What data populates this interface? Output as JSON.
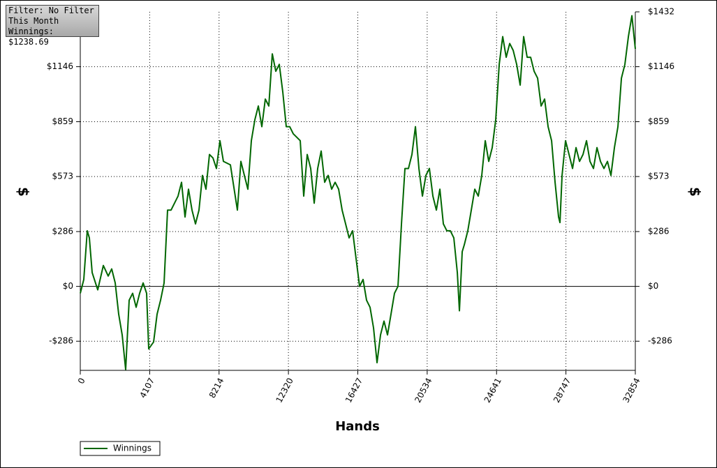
{
  "info": {
    "filter": "Filter: No Filter",
    "period": "This Month",
    "winnings": "Winnings: $1238.69"
  },
  "chart_data": {
    "type": "line",
    "xlabel": "Hands",
    "ylabel": "$",
    "y2label": "$",
    "x": [
      0,
      207,
      413,
      537,
      703,
      1033,
      1364,
      1653,
      1860,
      2067,
      2273,
      2480,
      2686,
      2893,
      3100,
      3306,
      3513,
      3720,
      3926,
      4050,
      4340,
      4546,
      4753,
      4960,
      5166,
      5373,
      5786,
      5993,
      6200,
      6406,
      6613,
      6819,
      7026,
      7233,
      7439,
      7646,
      7853,
      8059,
      8266,
      8473,
      8886,
      9299,
      9506,
      9713,
      9919,
      10126,
      10333,
      10539,
      10746,
      10952,
      11159,
      11366,
      11572,
      11779,
      11986,
      12192,
      12399,
      12606,
      13019,
      13226,
      13432,
      13639,
      13846,
      14052,
      14259,
      14466,
      14672,
      14879,
      15085,
      15292,
      15499,
      15705,
      15912,
      16119,
      16325,
      16532,
      16739,
      16945,
      17152,
      17359,
      17565,
      17772,
      17978,
      18185,
      18392,
      18598,
      18805,
      19012,
      19218,
      19425,
      19632,
      19838,
      20045,
      20252,
      20458,
      20665,
      20871,
      21078,
      21285,
      21491,
      21698,
      21905,
      22111,
      22318,
      22442,
      22607,
      22731,
      22938,
      23145,
      23351,
      23558,
      23765,
      23971,
      24178,
      24384,
      24591,
      24798,
      25004,
      25211,
      25418,
      25625,
      25831,
      26038,
      26244,
      26451,
      26658,
      26864,
      27071,
      27278,
      27484,
      27691,
      27898,
      28104,
      28311,
      28394,
      28518,
      28724,
      28931,
      29138,
      29344,
      29551,
      29758,
      29964,
      30171,
      30377,
      30584,
      30791,
      30997,
      31204,
      31411,
      31617,
      31824,
      32031,
      32237,
      32444,
      32651,
      32854
    ],
    "series": [
      {
        "name": "Winnings",
        "color": "#006600",
        "values": [
          -36,
          36,
          290,
          253,
          72,
          -18,
          109,
          54,
          91,
          18,
          -145,
          -253,
          -434,
          -72,
          -36,
          -109,
          -36,
          18,
          -36,
          -326,
          -290,
          -145,
          -72,
          18,
          398,
          398,
          471,
          543,
          362,
          507,
          398,
          326,
          398,
          579,
          507,
          688,
          670,
          615,
          760,
          652,
          634,
          398,
          652,
          579,
          507,
          760,
          869,
          941,
          833,
          977,
          941,
          1213,
          1122,
          1158,
          1014,
          833,
          833,
          796,
          760,
          471,
          688,
          615,
          434,
          615,
          706,
          543,
          579,
          507,
          543,
          507,
          398,
          326,
          253,
          290,
          145,
          0,
          36,
          -72,
          -109,
          -217,
          -398,
          -253,
          -181,
          -253,
          -145,
          -36,
          0,
          326,
          615,
          615,
          688,
          833,
          615,
          471,
          579,
          615,
          471,
          398,
          507,
          326,
          290,
          290,
          253,
          72,
          -127,
          181,
          217,
          290,
          398,
          507,
          471,
          579,
          760,
          652,
          724,
          869,
          1158,
          1303,
          1195,
          1267,
          1231,
          1158,
          1050,
          1303,
          1195,
          1195,
          1122,
          1086,
          941,
          977,
          833,
          760,
          543,
          362,
          333,
          579,
          760,
          688,
          615,
          724,
          652,
          688,
          760,
          652,
          615,
          724,
          652,
          615,
          652,
          579,
          724,
          833,
          1086,
          1158,
          1303,
          1412,
          1239
        ]
      }
    ],
    "xlim": [
      0,
      32854
    ],
    "xticks": [
      0,
      4107,
      8214,
      12320,
      16427,
      20534,
      24641,
      28747,
      32854
    ],
    "ylim": [
      -438,
      1432
    ],
    "yticks": [
      {
        "value": -286,
        "label": "-$286"
      },
      {
        "value": 0,
        "label": "$0"
      },
      {
        "value": 286,
        "label": "$286"
      },
      {
        "value": 573,
        "label": "$573"
      },
      {
        "value": 859,
        "label": "$859"
      },
      {
        "value": 1146,
        "label": "$1146"
      }
    ],
    "y2lim": [
      -438,
      1432
    ],
    "y2ticks": [
      {
        "value": -286,
        "label": "-$286"
      },
      {
        "value": 0,
        "label": "$0"
      },
      {
        "value": 286,
        "label": "$286"
      },
      {
        "value": 573,
        "label": "$573"
      },
      {
        "value": 859,
        "label": "$859"
      },
      {
        "value": 1146,
        "label": "$1146"
      },
      {
        "value": 1432,
        "label": "$1432"
      }
    ],
    "grid": true,
    "legend": "bottom-left"
  }
}
